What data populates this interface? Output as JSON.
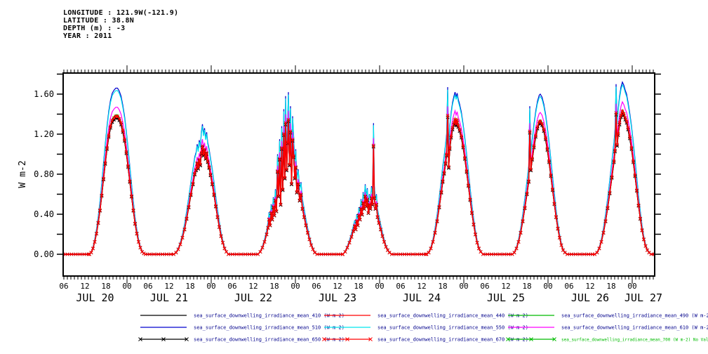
{
  "header": {
    "lines": [
      "LONGITUDE : 121.9W(-121.9)",
      "LATITUDE : 38.8N",
      "DEPTH (m) : -3",
      "YEAR : 2011"
    ]
  },
  "chart_data": {
    "type": "line",
    "title": "",
    "xlabel": "",
    "ylabel": "W m-2",
    "grid": false,
    "legend_position": "bottom",
    "ylim": [
      -0.22,
      1.81
    ],
    "ytick_labeled_values": [
      0.0,
      0.4,
      0.8,
      1.2,
      1.6
    ],
    "ytick_labels": [
      "0.00",
      "0.40",
      "0.80",
      "1.20",
      "1.60"
    ],
    "ytick_minor_step": 0.2,
    "x_units": "hours since JUL 20 2011 00:00 (UTC)",
    "xlim_hours": [
      5.8,
      174.4
    ],
    "xtick_minor_step_hours": 1,
    "xtick_label_step_hours": 6,
    "xtick_hour_label_cycle": [
      "06",
      "12",
      "18",
      "00"
    ],
    "day_labels": [
      "JUL 20",
      "JUL 21",
      "JUL 22",
      "JUL 23",
      "JUL 24",
      "JUL 25",
      "JUL 26",
      "JUL 27"
    ],
    "day_label_center_hours": [
      14.9,
      36,
      60,
      84,
      108,
      132,
      156,
      171.2
    ],
    "daily_peak_value_510nm": [
      1.66,
      1.3,
      1.62,
      1.31,
      1.67,
      1.6,
      1.72
    ],
    "reference_series": "sea_surface_downwelling_irradiance_mean_510",
    "envelope_note": "points [hour, W m-2] read for the 510 nm (highest) series; other wavelengths = scale x reference",
    "envelope_points_hv": [
      [
        5.8,
        0
      ],
      [
        13.3,
        0
      ],
      [
        13.8,
        0.02
      ],
      [
        14.3,
        0.07
      ],
      [
        14.8,
        0.15
      ],
      [
        15.3,
        0.25
      ],
      [
        15.8,
        0.38
      ],
      [
        16.3,
        0.53
      ],
      [
        16.8,
        0.71
      ],
      [
        17.3,
        0.91
      ],
      [
        17.8,
        1.1
      ],
      [
        18.3,
        1.28
      ],
      [
        18.8,
        1.43
      ],
      [
        19.3,
        1.54
      ],
      [
        19.8,
        1.61
      ],
      [
        20.3,
        1.64
      ],
      [
        20.8,
        1.66
      ],
      [
        21.3,
        1.66
      ],
      [
        21.8,
        1.63
      ],
      [
        22.3,
        1.58
      ],
      [
        22.8,
        1.49
      ],
      [
        23.3,
        1.38
      ],
      [
        23.8,
        1.23
      ],
      [
        24.3,
        1.06
      ],
      [
        24.8,
        0.88
      ],
      [
        25.3,
        0.7
      ],
      [
        25.8,
        0.53
      ],
      [
        26.3,
        0.37
      ],
      [
        26.8,
        0.25
      ],
      [
        27.3,
        0.15
      ],
      [
        27.8,
        0.08
      ],
      [
        28.3,
        0.03
      ],
      [
        28.8,
        0.01
      ],
      [
        29.3,
        0
      ],
      [
        37.3,
        0
      ],
      [
        38,
        0.02
      ],
      [
        38.6,
        0.06
      ],
      [
        39.2,
        0.12
      ],
      [
        39.8,
        0.2
      ],
      [
        40.4,
        0.3
      ],
      [
        41,
        0.43
      ],
      [
        41.6,
        0.57
      ],
      [
        42.2,
        0.72
      ],
      [
        42.8,
        0.85
      ],
      [
        43.3,
        0.97
      ],
      [
        43.7,
        1.02
      ],
      [
        44,
        1.1
      ],
      [
        44.3,
        1.04
      ],
      [
        44.6,
        1.14
      ],
      [
        44.9,
        1.08
      ],
      [
        45.2,
        1.22
      ],
      [
        45.5,
        1.3
      ],
      [
        45.8,
        1.2
      ],
      [
        46.1,
        1.26
      ],
      [
        46.4,
        1.16
      ],
      [
        46.7,
        1.22
      ],
      [
        47,
        1.12
      ],
      [
        47.4,
        1.05
      ],
      [
        47.8,
        0.96
      ],
      [
        48.3,
        0.85
      ],
      [
        48.8,
        0.72
      ],
      [
        49.3,
        0.58
      ],
      [
        49.8,
        0.45
      ],
      [
        50.3,
        0.33
      ],
      [
        50.8,
        0.22
      ],
      [
        51.3,
        0.14
      ],
      [
        51.8,
        0.07
      ],
      [
        52.3,
        0.03
      ],
      [
        52.9,
        0
      ],
      [
        61.3,
        0
      ],
      [
        62,
        0.03
      ],
      [
        62.6,
        0.08
      ],
      [
        63.2,
        0.15
      ],
      [
        63.8,
        0.24
      ],
      [
        64.2,
        0.32
      ],
      [
        64.5,
        0.42
      ],
      [
        64.8,
        0.35
      ],
      [
        65.1,
        0.5
      ],
      [
        65.4,
        0.42
      ],
      [
        65.7,
        0.57
      ],
      [
        66,
        0.47
      ],
      [
        66.3,
        0.65
      ],
      [
        66.6,
        0.52
      ],
      [
        66.9,
        1.0
      ],
      [
        67.2,
        0.7
      ],
      [
        67.5,
        1.15
      ],
      [
        67.8,
        0.6
      ],
      [
        68.1,
        1.28
      ],
      [
        68.4,
        0.78
      ],
      [
        68.7,
        1.45
      ],
      [
        69,
        0.92
      ],
      [
        69.2,
        1.58
      ],
      [
        69.5,
        1.02
      ],
      [
        69.8,
        1.35
      ],
      [
        70,
        1.62
      ],
      [
        70.3,
        1.08
      ],
      [
        70.6,
        1.48
      ],
      [
        70.9,
        0.85
      ],
      [
        71.2,
        1.38
      ],
      [
        71.5,
        1.18
      ],
      [
        71.8,
        0.92
      ],
      [
        72.1,
        1.05
      ],
      [
        72.4,
        0.75
      ],
      [
        72.8,
        0.85
      ],
      [
        73.2,
        0.65
      ],
      [
        73.6,
        0.72
      ],
      [
        74,
        0.55
      ],
      [
        74.5,
        0.45
      ],
      [
        75,
        0.35
      ],
      [
        75.5,
        0.26
      ],
      [
        76,
        0.18
      ],
      [
        76.5,
        0.11
      ],
      [
        77,
        0.06
      ],
      [
        77.5,
        0.02
      ],
      [
        78.2,
        0
      ],
      [
        85.5,
        0
      ],
      [
        86.2,
        0.03
      ],
      [
        86.8,
        0.08
      ],
      [
        87.4,
        0.14
      ],
      [
        88,
        0.21
      ],
      [
        88.5,
        0.28
      ],
      [
        88.9,
        0.34
      ],
      [
        89.2,
        0.3
      ],
      [
        89.5,
        0.4
      ],
      [
        89.8,
        0.35
      ],
      [
        90.1,
        0.47
      ],
      [
        90.4,
        0.42
      ],
      [
        90.7,
        0.55
      ],
      [
        91,
        0.48
      ],
      [
        91.3,
        0.62
      ],
      [
        91.6,
        0.55
      ],
      [
        91.9,
        0.7
      ],
      [
        92.2,
        0.58
      ],
      [
        92.5,
        0.66
      ],
      [
        92.8,
        0.5
      ],
      [
        93.1,
        0.6
      ],
      [
        93.4,
        0.55
      ],
      [
        93.7,
        0.68
      ],
      [
        94,
        0.6
      ],
      [
        94.25,
        1.31
      ],
      [
        94.5,
        0.68
      ],
      [
        94.8,
        0.55
      ],
      [
        95.1,
        0.6
      ],
      [
        95.4,
        0.45
      ],
      [
        95.8,
        0.38
      ],
      [
        96.3,
        0.3
      ],
      [
        96.8,
        0.22
      ],
      [
        97.3,
        0.15
      ],
      [
        97.8,
        0.09
      ],
      [
        98.3,
        0.05
      ],
      [
        98.8,
        0.02
      ],
      [
        99.5,
        0
      ],
      [
        109.4,
        0
      ],
      [
        110,
        0.02
      ],
      [
        110.6,
        0.07
      ],
      [
        111.2,
        0.15
      ],
      [
        111.8,
        0.26
      ],
      [
        112.4,
        0.4
      ],
      [
        113,
        0.57
      ],
      [
        113.6,
        0.75
      ],
      [
        114,
        0.88
      ],
      [
        114.4,
        0.98
      ],
      [
        114.8,
        1.1
      ],
      [
        115.1,
        1.2
      ],
      [
        115.4,
        1.67
      ],
      [
        115.7,
        1.05
      ],
      [
        116,
        1.28
      ],
      [
        116.4,
        1.42
      ],
      [
        116.8,
        1.52
      ],
      [
        117.2,
        1.58
      ],
      [
        117.5,
        1.62
      ],
      [
        117.8,
        1.57
      ],
      [
        118.1,
        1.61
      ],
      [
        118.4,
        1.55
      ],
      [
        118.8,
        1.5
      ],
      [
        119.3,
        1.42
      ],
      [
        119.8,
        1.3
      ],
      [
        120.3,
        1.16
      ],
      [
        120.8,
        1.0
      ],
      [
        121.3,
        0.83
      ],
      [
        121.8,
        0.66
      ],
      [
        122.3,
        0.5
      ],
      [
        122.8,
        0.36
      ],
      [
        123.3,
        0.24
      ],
      [
        123.8,
        0.14
      ],
      [
        124.3,
        0.07
      ],
      [
        124.8,
        0.03
      ],
      [
        125.5,
        0
      ],
      [
        133.8,
        0
      ],
      [
        134.4,
        0.02
      ],
      [
        135,
        0.07
      ],
      [
        135.6,
        0.15
      ],
      [
        136.2,
        0.26
      ],
      [
        136.8,
        0.4
      ],
      [
        137.4,
        0.56
      ],
      [
        138,
        0.73
      ],
      [
        138.5,
        0.88
      ],
      [
        138.8,
        1.48
      ],
      [
        139.1,
        1.02
      ],
      [
        139.5,
        1.15
      ],
      [
        140,
        1.3
      ],
      [
        140.5,
        1.43
      ],
      [
        141,
        1.53
      ],
      [
        141.5,
        1.59
      ],
      [
        141.8,
        1.6
      ],
      [
        142.3,
        1.57
      ],
      [
        142.8,
        1.5
      ],
      [
        143.3,
        1.4
      ],
      [
        143.8,
        1.27
      ],
      [
        144.3,
        1.12
      ],
      [
        144.8,
        0.95
      ],
      [
        145.3,
        0.78
      ],
      [
        145.8,
        0.61
      ],
      [
        146.3,
        0.45
      ],
      [
        146.8,
        0.31
      ],
      [
        147.3,
        0.2
      ],
      [
        147.8,
        0.11
      ],
      [
        148.3,
        0.05
      ],
      [
        148.8,
        0.02
      ],
      [
        149.5,
        0
      ],
      [
        157.3,
        0
      ],
      [
        158,
        0.02
      ],
      [
        158.6,
        0.07
      ],
      [
        159.2,
        0.15
      ],
      [
        159.8,
        0.26
      ],
      [
        160.4,
        0.4
      ],
      [
        161,
        0.56
      ],
      [
        161.6,
        0.74
      ],
      [
        162.2,
        0.93
      ],
      [
        162.8,
        1.12
      ],
      [
        163.1,
        1.25
      ],
      [
        163.4,
        1.7
      ],
      [
        163.7,
        1.32
      ],
      [
        164,
        1.45
      ],
      [
        164.4,
        1.58
      ],
      [
        164.8,
        1.67
      ],
      [
        165.2,
        1.72
      ],
      [
        165.6,
        1.69
      ],
      [
        166,
        1.64
      ],
      [
        166.4,
        1.6
      ],
      [
        166.8,
        1.52
      ],
      [
        167.3,
        1.41
      ],
      [
        167.8,
        1.28
      ],
      [
        168.3,
        1.12
      ],
      [
        168.8,
        0.95
      ],
      [
        169.3,
        0.77
      ],
      [
        169.8,
        0.59
      ],
      [
        170.3,
        0.43
      ],
      [
        170.8,
        0.29
      ],
      [
        171.3,
        0.18
      ],
      [
        171.8,
        0.1
      ],
      [
        172.3,
        0.05
      ],
      [
        172.8,
        0.02
      ],
      [
        173.4,
        0
      ],
      [
        174.4,
        0
      ]
    ],
    "series": [
      {
        "name": "sea_surface_downwelling_irradiance_mean_410",
        "label": "sea_surface_downwelling_irradiance_mean_410 (W m-2)",
        "wavelength_nm": 410,
        "color": "#000000",
        "marker": "none",
        "scale": 0.815,
        "legend_row": 0,
        "legend_col": 0,
        "label_color": "#00008b"
      },
      {
        "name": "sea_surface_downwelling_irradiance_mean_440",
        "label": "sea_surface_downwelling_irradiance_mean_440 (W m-2)",
        "wavelength_nm": 440,
        "color": "#ff0000",
        "marker": "none",
        "scale": 0.835,
        "legend_row": 0,
        "legend_col": 1,
        "label_color": "#00008b"
      },
      {
        "name": "sea_surface_downwelling_irradiance_mean_490",
        "label": "sea_surface_downwelling_irradiance_mean_490 (W m-2)",
        "wavelength_nm": 490,
        "color": "#00bb00",
        "marker": "none",
        "scale": 0.84,
        "legend_row": 0,
        "legend_col": 2,
        "label_color": "#00008b"
      },
      {
        "name": "sea_surface_downwelling_irradiance_mean_510",
        "label": "sea_surface_downwelling_irradiance_mean_510 (W m-2)",
        "wavelength_nm": 510,
        "color": "#0000cd",
        "marker": "none",
        "scale": 1.0,
        "legend_row": 1,
        "legend_col": 0,
        "label_color": "#00008b"
      },
      {
        "name": "sea_surface_downwelling_irradiance_mean_550",
        "label": "sea_surface_downwelling_irradiance_mean_550 (W m-2)",
        "wavelength_nm": 550,
        "color": "#00e5ee",
        "marker": "none",
        "scale": 0.985,
        "legend_row": 1,
        "legend_col": 1,
        "label_color": "#00008b"
      },
      {
        "name": "sea_surface_downwelling_irradiance_mean_610",
        "label": "sea_surface_downwelling_irradiance_mean_610 (W m-2)",
        "wavelength_nm": 610,
        "color": "#ff00ff",
        "marker": "none",
        "scale": 0.885,
        "legend_row": 1,
        "legend_col": 2,
        "label_color": "#00008b"
      },
      {
        "name": "sea_surface_downwelling_irradiance_mean_650",
        "label": "sea_surface_downwelling_irradiance_mean_650 (W m-2)",
        "wavelength_nm": 650,
        "color": "#000000",
        "marker": "x",
        "scale": 0.82,
        "legend_row": 2,
        "legend_col": 0,
        "label_color": "#00008b"
      },
      {
        "name": "sea_surface_downwelling_irradiance_mean_670",
        "label": "sea_surface_downwelling_irradiance_mean_670 (W m-2)",
        "wavelength_nm": 670,
        "color": "#ff0000",
        "marker": "x",
        "scale": 0.83,
        "legend_row": 2,
        "legend_col": 1,
        "label_color": "#00008b"
      },
      {
        "name": "sea_surface_downwelling_irradiance_mean_700",
        "label": "sea_surface_downwelling_irradiance_mean_700 (W m-2) No Valid Data",
        "wavelength_nm": 700,
        "color": "#00bb00",
        "marker": "x",
        "scale": null,
        "no_valid_data": true,
        "legend_row": 2,
        "legend_col": 2,
        "label_color": "#00bb00"
      }
    ],
    "draw_order": [
      "sea_surface_downwelling_irradiance_mean_490",
      "sea_surface_downwelling_irradiance_mean_410",
      "sea_surface_downwelling_irradiance_mean_510",
      "sea_surface_downwelling_irradiance_mean_550",
      "sea_surface_downwelling_irradiance_mean_610",
      "sea_surface_downwelling_irradiance_mean_440",
      "sea_surface_downwelling_irradiance_mean_650",
      "sea_surface_downwelling_irradiance_mean_670"
    ]
  }
}
